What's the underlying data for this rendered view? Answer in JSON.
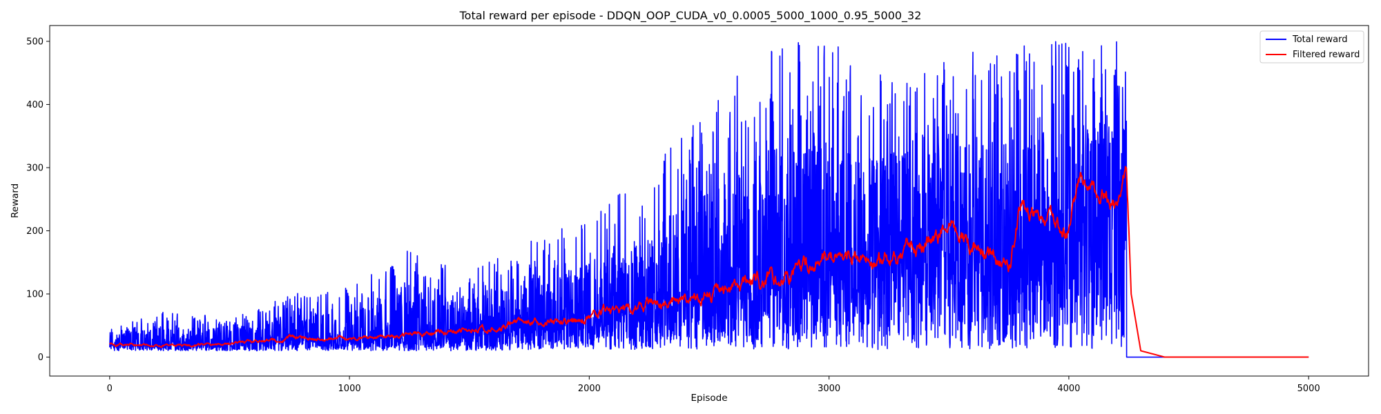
{
  "chart_data": {
    "type": "line",
    "title": "Total reward per episode - DDQN_OOP_CUDA_v0_0.0005_5000_1000_0.95_5000_32",
    "xlabel": "Episode",
    "ylabel": "Reward",
    "xlim": [
      -250,
      5250
    ],
    "ylim": [
      -30,
      525
    ],
    "x_ticks": [
      0,
      1000,
      2000,
      3000,
      4000,
      5000
    ],
    "y_ticks": [
      0,
      100,
      200,
      300,
      400,
      500
    ],
    "x_tick_labels": [
      "0",
      "1000",
      "2000",
      "3000",
      "4000",
      "5000"
    ],
    "y_tick_labels": [
      "0",
      "100",
      "200",
      "300",
      "400",
      "500"
    ],
    "grid": false,
    "legend_position": "top-right",
    "series": [
      {
        "name": "Total reward",
        "color": "#0000ff",
        "x": [
          0,
          250,
          500,
          750,
          1000,
          1250,
          1500,
          1750,
          2000,
          2250,
          2500,
          2750,
          3000,
          3250,
          3500,
          3750,
          4000,
          4100,
          4200,
          4240,
          4241,
          4500,
          5000
        ],
        "values": [
          20,
          22,
          24,
          27,
          30,
          35,
          42,
          52,
          62,
          78,
          95,
          120,
          150,
          170,
          180,
          150,
          210,
          230,
          240,
          230,
          0,
          0,
          0
        ],
        "min_values": [
          10,
          10,
          10,
          10,
          10,
          10,
          10,
          12,
          12,
          12,
          12,
          12,
          12,
          12,
          12,
          12,
          12,
          12,
          12,
          12,
          0,
          0,
          0
        ],
        "max_values": [
          45,
          75,
          60,
          100,
          110,
          170,
          135,
          185,
          220,
          300,
          400,
          500,
          500,
          450,
          500,
          500,
          500,
          500,
          500,
          500,
          0,
          0,
          0
        ]
      },
      {
        "name": "Filtered reward",
        "color": "#ff0000",
        "x": [
          0,
          250,
          500,
          750,
          1000,
          1250,
          1500,
          1750,
          2000,
          2250,
          2500,
          2750,
          3000,
          3250,
          3500,
          3750,
          3800,
          4000,
          4050,
          4200,
          4240,
          4260,
          4300,
          4400,
          5000
        ],
        "values": [
          20,
          18,
          22,
          30,
          28,
          35,
          45,
          55,
          65,
          80,
          100,
          120,
          160,
          150,
          200,
          140,
          240,
          200,
          280,
          240,
          310,
          100,
          10,
          0,
          0
        ]
      }
    ]
  }
}
